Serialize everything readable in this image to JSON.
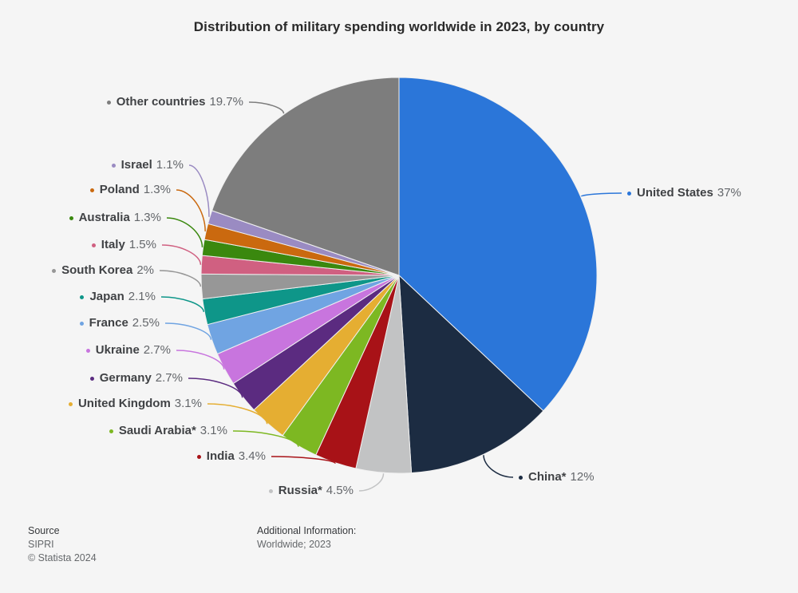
{
  "title": "Distribution of military spending worldwide in 2023, by country",
  "footer": {
    "source_label": "Source",
    "source_name": "SIPRI",
    "copyright": "© Statista 2024",
    "additional_label": "Additional Information:",
    "additional_value": "Worldwide; 2023"
  },
  "background_color": "#f5f5f5",
  "chart_data": {
    "type": "pie",
    "title": "Distribution of military spending worldwide in 2023, by country",
    "start_angle_deg": 0,
    "direction": "clockwise",
    "legend_position": "around-pie-with-leader-lines",
    "slices": [
      {
        "label": "United States",
        "value": 37,
        "display": "37%",
        "color": "#2b76d9"
      },
      {
        "label": "China*",
        "value": 12,
        "display": "12%",
        "color": "#1c2c42"
      },
      {
        "label": "Russia*",
        "value": 4.5,
        "display": "4.5%",
        "color": "#c2c3c4"
      },
      {
        "label": "India",
        "value": 3.4,
        "display": "3.4%",
        "color": "#a81217"
      },
      {
        "label": "Saudi Arabia*",
        "value": 3.1,
        "display": "3.1%",
        "color": "#7db822"
      },
      {
        "label": "United Kingdom",
        "value": 3.1,
        "display": "3.1%",
        "color": "#e5ae32"
      },
      {
        "label": "Germany",
        "value": 2.7,
        "display": "2.7%",
        "color": "#5b2b80"
      },
      {
        "label": "Ukraine",
        "value": 2.7,
        "display": "2.7%",
        "color": "#c875de"
      },
      {
        "label": "France",
        "value": 2.5,
        "display": "2.5%",
        "color": "#70a4e2"
      },
      {
        "label": "Japan",
        "value": 2.1,
        "display": "2.1%",
        "color": "#0e9689"
      },
      {
        "label": "South Korea",
        "value": 2,
        "display": "2%",
        "color": "#979797"
      },
      {
        "label": "Italy",
        "value": 1.5,
        "display": "1.5%",
        "color": "#d06081"
      },
      {
        "label": "Australia",
        "value": 1.3,
        "display": "1.3%",
        "color": "#3a880e"
      },
      {
        "label": "Poland",
        "value": 1.3,
        "display": "1.3%",
        "color": "#ca690f"
      },
      {
        "label": "Israel",
        "value": 1.1,
        "display": "1.1%",
        "color": "#9a8bc2"
      },
      {
        "label": "Other countries",
        "value": 19.7,
        "display": "19.7%",
        "color": "#7d7d7d"
      }
    ]
  }
}
